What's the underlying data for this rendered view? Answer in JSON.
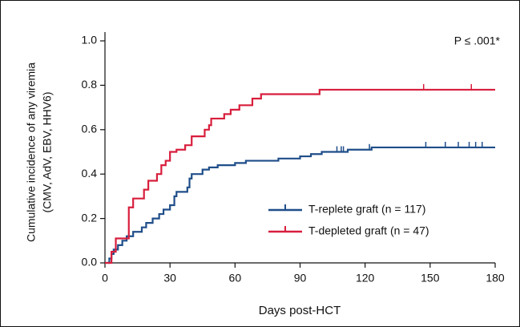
{
  "chart_data": {
    "type": "step",
    "xlabel": "Days post-HCT",
    "ylabel": [
      "Cumulative incidence of any viremia",
      "(CMV, AdV, EBV, HHV6)"
    ],
    "annotation": "P ≤ .001*",
    "xlim": [
      0,
      180
    ],
    "xticks": [
      0,
      30,
      60,
      90,
      120,
      150,
      180
    ],
    "ylim": [
      0,
      1
    ],
    "yticks": [
      {
        "value": 0,
        "label": "0.0"
      },
      0.2,
      0.4,
      0.6,
      0.8,
      {
        "value": 1,
        "label": "1.0"
      }
    ],
    "legend": "center right",
    "series": [
      {
        "name": "T-replete graft (n = 117)",
        "color": "#1f4e89",
        "x": [
          0,
          2,
          3,
          4,
          6,
          8,
          10,
          13,
          17,
          19,
          22,
          25,
          27,
          30,
          32,
          33,
          38,
          39,
          40,
          45,
          48,
          52,
          60,
          65,
          80,
          90,
          95,
          100,
          112,
          123,
          180
        ],
        "values": [
          0,
          0.02,
          0.04,
          0.06,
          0.08,
          0.1,
          0.12,
          0.14,
          0.16,
          0.18,
          0.2,
          0.22,
          0.24,
          0.26,
          0.3,
          0.32,
          0.34,
          0.38,
          0.4,
          0.42,
          0.43,
          0.44,
          0.45,
          0.46,
          0.47,
          0.48,
          0.49,
          0.5,
          0.51,
          0.52,
          0.52
        ],
        "censored": [
          107,
          109,
          110,
          122,
          148,
          157,
          163,
          168,
          171,
          174
        ]
      },
      {
        "name": "T-depleted graft (n = 47)",
        "color": "#d81e3c",
        "x": [
          0,
          3,
          5,
          11,
          13,
          18,
          20,
          24,
          26,
          28,
          30,
          33,
          37,
          40,
          46,
          48,
          49,
          55,
          58,
          62,
          68,
          72,
          99,
          180
        ],
        "values": [
          0,
          0.05,
          0.11,
          0.25,
          0.29,
          0.33,
          0.37,
          0.4,
          0.44,
          0.46,
          0.5,
          0.51,
          0.53,
          0.57,
          0.6,
          0.62,
          0.65,
          0.67,
          0.69,
          0.71,
          0.74,
          0.76,
          0.78,
          0.78
        ],
        "censored": [
          147,
          169
        ]
      }
    ]
  }
}
